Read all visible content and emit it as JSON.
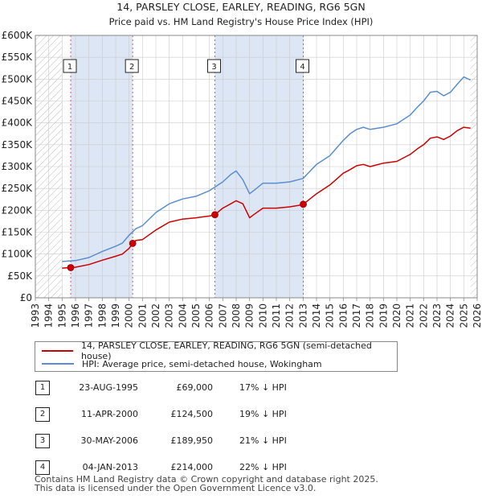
{
  "chart_data": {
    "type": "line",
    "title": "14, PARSLEY CLOSE, EARLEY, READING, RG6 5GN",
    "subtitle": "Price paid vs. HM Land Registry's House Price Index (HPI)",
    "xlabel": "",
    "ylabel": "",
    "xlim": [
      1993,
      2026
    ],
    "ylim": [
      0,
      600000
    ],
    "y_ticks": [
      {
        "value": 0,
        "label": "£0"
      },
      {
        "value": 50000,
        "label": "£50K"
      },
      {
        "value": 100000,
        "label": "£100K"
      },
      {
        "value": 150000,
        "label": "£150K"
      },
      {
        "value": 200000,
        "label": "£200K"
      },
      {
        "value": 250000,
        "label": "£250K"
      },
      {
        "value": 300000,
        "label": "£300K"
      },
      {
        "value": 350000,
        "label": "£350K"
      },
      {
        "value": 400000,
        "label": "£400K"
      },
      {
        "value": 450000,
        "label": "£450K"
      },
      {
        "value": 500000,
        "label": "£500K"
      },
      {
        "value": 550000,
        "label": "£550K"
      },
      {
        "value": 600000,
        "label": "£600K"
      }
    ],
    "x_ticks": [
      "1993",
      "1994",
      "1995",
      "1996",
      "1997",
      "1998",
      "1999",
      "2000",
      "2001",
      "2002",
      "2003",
      "2004",
      "2005",
      "2006",
      "2007",
      "2008",
      "2009",
      "2010",
      "2011",
      "2012",
      "2013",
      "2014",
      "2015",
      "2016",
      "2017",
      "2018",
      "2019",
      "2020",
      "2021",
      "2022",
      "2023",
      "2024",
      "2025",
      "2026"
    ],
    "data_start": 1995.0,
    "data_end": 2025.5,
    "series": [
      {
        "name": "14, PARSLEY CLOSE, EARLEY, READING, RG6 5GN (semi-detached house)",
        "color": "#cc0000",
        "x": [
          1995.0,
          1995.64,
          1996.0,
          1997.0,
          1998.0,
          1999.0,
          1999.5,
          2000.0,
          2000.27,
          2000.5,
          2001.0,
          2002.0,
          2003.0,
          2004.0,
          2005.0,
          2006.0,
          2006.41,
          2007.0,
          2007.6,
          2008.0,
          2008.5,
          2009.0,
          2009.3,
          2010.0,
          2011.0,
          2012.0,
          2013.0,
          2013.01,
          2014.0,
          2015.0,
          2016.0,
          2016.5,
          2017.0,
          2017.5,
          2018.0,
          2019.0,
          2020.0,
          2021.0,
          2021.5,
          2022.0,
          2022.5,
          2023.0,
          2023.5,
          2024.0,
          2024.5,
          2025.0,
          2025.5
        ],
        "y": [
          68000,
          69000,
          70000,
          76000,
          86000,
          95000,
          100000,
          113000,
          124500,
          131000,
          133000,
          155000,
          173000,
          180000,
          183000,
          187000,
          189950,
          205000,
          215000,
          222000,
          215000,
          183000,
          190000,
          205000,
          205000,
          208000,
          213000,
          214000,
          238000,
          258000,
          285000,
          293000,
          302000,
          305000,
          300000,
          308000,
          312000,
          328000,
          340000,
          350000,
          365000,
          368000,
          362000,
          370000,
          382000,
          390000,
          388000
        ]
      },
      {
        "name": "HPI: Average price, semi-detached house, Wokingham",
        "color": "#5a8ed0",
        "x": [
          1995.0,
          1996.0,
          1997.0,
          1998.0,
          1999.0,
          1999.5,
          2000.0,
          2000.5,
          2001.0,
          2002.0,
          2003.0,
          2004.0,
          2005.0,
          2006.0,
          2007.0,
          2007.6,
          2008.0,
          2008.5,
          2009.0,
          2009.3,
          2010.0,
          2011.0,
          2012.0,
          2013.0,
          2014.0,
          2015.0,
          2016.0,
          2016.5,
          2017.0,
          2017.5,
          2018.0,
          2019.0,
          2020.0,
          2021.0,
          2021.5,
          2022.0,
          2022.5,
          2023.0,
          2023.5,
          2024.0,
          2024.5,
          2025.0,
          2025.5
        ],
        "y": [
          83000,
          85000,
          92000,
          106000,
          118000,
          125000,
          143000,
          158000,
          165000,
          195000,
          215000,
          226000,
          232000,
          245000,
          265000,
          282000,
          290000,
          270000,
          238000,
          245000,
          262000,
          262000,
          265000,
          273000,
          305000,
          325000,
          360000,
          375000,
          385000,
          390000,
          385000,
          390000,
          398000,
          418000,
          435000,
          450000,
          470000,
          472000,
          462000,
          470000,
          488000,
          505000,
          498000
        ]
      }
    ],
    "markers": [
      {
        "id": "1",
        "x": 1995.64,
        "y": 69000
      },
      {
        "id": "2",
        "x": 2000.27,
        "y": 124500
      },
      {
        "id": "3",
        "x": 2006.41,
        "y": 189950
      },
      {
        "id": "4",
        "x": 2013.01,
        "y": 214000
      }
    ]
  },
  "legend": [
    {
      "label": "14, PARSLEY CLOSE, EARLEY, READING, RG6 5GN (semi-detached house)",
      "color": "#cc0000"
    },
    {
      "label": "HPI: Average price, semi-detached house, Wokingham",
      "color": "#5a8ed0"
    }
  ],
  "sales": [
    {
      "num": "1",
      "date": "23-AUG-1995",
      "price": "£69,000",
      "hpi": "17% ↓ HPI"
    },
    {
      "num": "2",
      "date": "11-APR-2000",
      "price": "£124,500",
      "hpi": "19% ↓ HPI"
    },
    {
      "num": "3",
      "date": "30-MAY-2006",
      "price": "£189,950",
      "hpi": "21% ↓ HPI"
    },
    {
      "num": "4",
      "date": "04-JAN-2013",
      "price": "£214,000",
      "hpi": "22% ↓ HPI"
    }
  ],
  "footer": {
    "line1": "Contains HM Land Registry data © Crown copyright and database right 2025.",
    "line2": "This data is licensed under the Open Government Licence v3.0."
  },
  "colors": {
    "property": "#cc0000",
    "hpi": "#5a8ed0",
    "grid": "#cccccc",
    "hatch": "#bbbbbb",
    "shade": "#dde6f5"
  }
}
